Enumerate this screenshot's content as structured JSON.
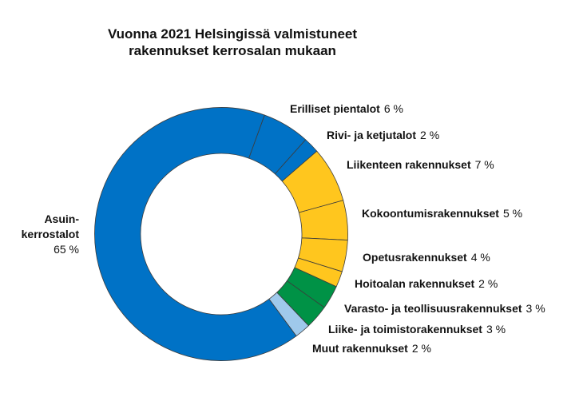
{
  "title": {
    "line1": "Vuonna 2021 Helsingissä valmistuneet",
    "line2": "rakennukset kerrosalan mukaan"
  },
  "chart_data": {
    "type": "pie",
    "subtype": "donut",
    "title": "Vuonna 2021 Helsingissä valmistuneet rakennukset kerrosalan mukaan",
    "unit": "%",
    "start_angle_deg": 20,
    "clockwise": true,
    "legend_position": "labels-around-chart",
    "grid": false,
    "colors": {
      "blue": "#0072c6",
      "yellow": "#ffc61e",
      "green": "#009246",
      "light_blue": "#9fc9eb",
      "outline": "#3c3c3c"
    },
    "slices": [
      {
        "label": "Erilliset pientalot",
        "value": 6,
        "pct_text": "6 %",
        "color": "#0072c6"
      },
      {
        "label": "Rivi- ja ketjutalot",
        "value": 2,
        "pct_text": "2 %",
        "color": "#0072c6"
      },
      {
        "label": "Liikenteen rakennukset",
        "value": 7,
        "pct_text": "7 %",
        "color": "#ffc61e"
      },
      {
        "label": "Kokoontumisrakennukset",
        "value": 5,
        "pct_text": "5 %",
        "color": "#ffc61e"
      },
      {
        "label": "Opetusrakennukset",
        "value": 4,
        "pct_text": "4 %",
        "color": "#ffc61e"
      },
      {
        "label": "Hoitoalan rakennukset",
        "value": 2,
        "pct_text": "2 %",
        "color": "#ffc61e"
      },
      {
        "label": "Varasto- ja teollisuusrakennukset",
        "value": 3,
        "pct_text": "3 %",
        "color": "#009246"
      },
      {
        "label": "Liike- ja toimistorakennukset",
        "value": 3,
        "pct_text": "3 %",
        "color": "#009246"
      },
      {
        "label": "Muut rakennukset",
        "value": 2,
        "pct_text": "2 %",
        "color": "#9fc9eb"
      },
      {
        "label": "Asuinkerrostalot",
        "label_lines": [
          "Asuin-",
          "kerrostalot"
        ],
        "value": 65,
        "pct_text": "65 %",
        "color": "#0072c6"
      }
    ]
  }
}
